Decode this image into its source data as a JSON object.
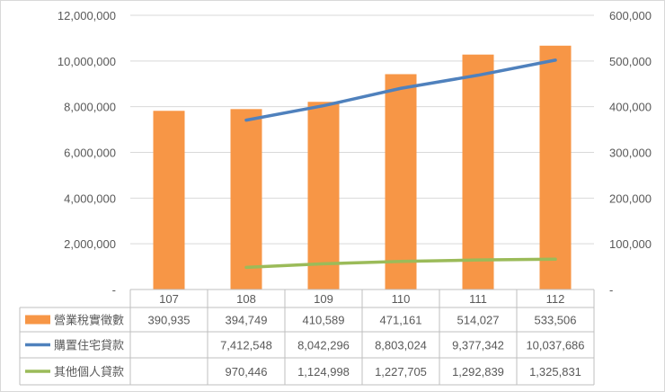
{
  "chart_data": {
    "type": "bar",
    "categories": [
      "107",
      "108",
      "109",
      "110",
      "111",
      "112"
    ],
    "left_axis": {
      "range": [
        0,
        12000000
      ],
      "ticks": [
        "-",
        "2,000,000",
        "4,000,000",
        "6,000,000",
        "8,000,000",
        "10,000,000",
        "12,000,000"
      ]
    },
    "right_axis": {
      "range": [
        0,
        600000
      ],
      "ticks": [
        "-",
        "100,000",
        "200,000",
        "300,000",
        "400,000",
        "500,000",
        "600,000"
      ]
    },
    "gridlines": true,
    "legend": "data-table",
    "series": [
      {
        "name": "營業稅實徵數",
        "type": "bar",
        "axis": "right",
        "color": "#f79646",
        "values": [
          390935,
          394749,
          410589,
          471161,
          514027,
          533506
        ],
        "labels": [
          "390,935",
          "394,749",
          "410,589",
          "471,161",
          "514,027",
          "533,506"
        ]
      },
      {
        "name": "購置住宅貸款",
        "type": "line",
        "axis": "left",
        "color": "#4f81bd",
        "values": [
          null,
          7412548,
          8042296,
          8803024,
          9377342,
          10037686
        ],
        "labels": [
          "",
          "7,412,548",
          "8,042,296",
          "8,803,024",
          "9,377,342",
          "10,037,686"
        ]
      },
      {
        "name": "其他個人貸款",
        "type": "line",
        "axis": "left",
        "color": "#9bbb59",
        "values": [
          null,
          970446,
          1124998,
          1227705,
          1292839,
          1325831
        ],
        "labels": [
          "",
          "970,446",
          "1,124,998",
          "1,227,705",
          "1,292,839",
          "1,325,831"
        ]
      }
    ]
  }
}
